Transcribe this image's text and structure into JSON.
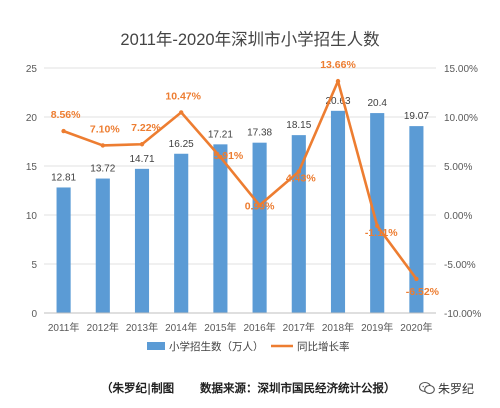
{
  "chart_data": {
    "type": "bar+line",
    "title": "2011年-2020年深圳市小学招生人数",
    "categories": [
      "2011年",
      "2012年",
      "2013年",
      "2014年",
      "2015年",
      "2016年",
      "2017年",
      "2018年",
      "2019年",
      "2020年"
    ],
    "series": [
      {
        "name": "小学招生数（万人）",
        "type": "bar",
        "axis": "left",
        "color": "#5b9bd5",
        "values": [
          12.81,
          13.72,
          14.71,
          16.25,
          17.21,
          17.38,
          18.15,
          20.63,
          20.4,
          19.07
        ],
        "labels": [
          "12.81",
          "13.72",
          "14.71",
          "16.25",
          "17.21",
          "17.38",
          "18.15",
          "20.63",
          "20.4",
          "19.07"
        ]
      },
      {
        "name": "同比增长率",
        "type": "line",
        "axis": "right",
        "color": "#ed7d31",
        "values": [
          8.56,
          7.1,
          7.22,
          10.47,
          5.91,
          0.99,
          4.43,
          13.66,
          -1.11,
          -6.52
        ],
        "labels": [
          "8.56%",
          "7.10%",
          "7.22%",
          "10.47%",
          "5.91%",
          "0.99%",
          "4.43%",
          "13.66%",
          "-1.11%",
          "-6.52%"
        ]
      }
    ],
    "y_left": {
      "min": 0,
      "max": 25,
      "ticks": [
        "0",
        "5",
        "10",
        "15",
        "20",
        "25"
      ]
    },
    "y_right": {
      "min": -10,
      "max": 15,
      "ticks": [
        "-10.00%",
        "-5.00%",
        "0.00%",
        "5.00%",
        "10.00%",
        "15.00%"
      ]
    },
    "grid": true,
    "legend_position": "bottom"
  },
  "footer": {
    "credit": "（朱罗纪|制图",
    "source": "数据来源：深圳市国民经济统计公报）",
    "watermark": "朱罗纪"
  }
}
